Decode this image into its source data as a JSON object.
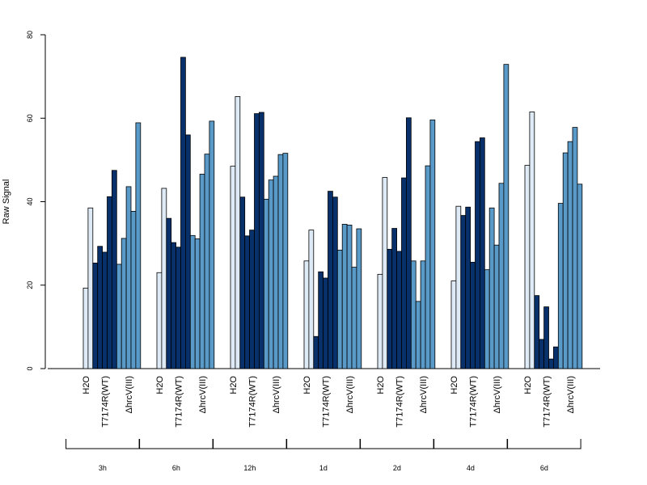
{
  "chart_data": {
    "type": "bar",
    "ylabel": "Raw Signal",
    "ylim": [
      0,
      80
    ],
    "yticks": [
      0,
      20,
      40,
      60,
      80
    ],
    "grid": false,
    "colors": {
      "H2O": "#deebf7",
      "T7174R(WT)": "#08306b",
      "ΔhrcV(III)": "#5a9ac8"
    },
    "groups": [
      {
        "time": "3h",
        "subgroups": [
          {
            "label": "H2O",
            "values": [
              0,
              19.3,
              38.5
            ]
          },
          {
            "label": "T7174R(WT)",
            "values": [
              25.3,
              29.3,
              27.9,
              41.2,
              47.5
            ]
          },
          {
            "label": "ΔhrcV(III)",
            "values": [
              25,
              31.2,
              43.6,
              37.7,
              58.9
            ]
          }
        ]
      },
      {
        "time": "6h",
        "subgroups": [
          {
            "label": "H2O",
            "values": [
              0,
              23,
              43.2
            ]
          },
          {
            "label": "T7174R(WT)",
            "values": [
              36,
              30.2,
              29.1,
              74.6,
              56
            ]
          },
          {
            "label": "ΔhrcV(III)",
            "values": [
              31.9,
              31.1,
              46.6,
              51.4,
              59.3
            ]
          }
        ]
      },
      {
        "time": "12h",
        "subgroups": [
          {
            "label": "H2O",
            "values": [
              0,
              48.5,
              65.2
            ]
          },
          {
            "label": "T7174R(WT)",
            "values": [
              41.1,
              31.8,
              33.2,
              61.1,
              61.4
            ]
          },
          {
            "label": "ΔhrcV(III)",
            "values": [
              40.6,
              45.2,
              46.1,
              51.3,
              51.6
            ]
          }
        ]
      },
      {
        "time": "1d",
        "subgroups": [
          {
            "label": "H2O",
            "values": [
              0,
              25.8,
              33.2
            ]
          },
          {
            "label": "T7174R(WT)",
            "values": [
              7.7,
              23.2,
              21.7,
              42.5,
              41.1
            ]
          },
          {
            "label": "ΔhrcV(III)",
            "values": [
              28.4,
              34.6,
              34.4,
              24.3,
              33.5
            ]
          }
        ]
      },
      {
        "time": "2d",
        "subgroups": [
          {
            "label": "H2O",
            "values": [
              0,
              22.6,
              45.8
            ]
          },
          {
            "label": "T7174R(WT)",
            "values": [
              28.6,
              33.6,
              28.1,
              45.7,
              60.1
            ]
          },
          {
            "label": "ΔhrcV(III)",
            "values": [
              25.8,
              16.1,
              25.8,
              48.6,
              59.6
            ]
          }
        ]
      },
      {
        "time": "4d",
        "subgroups": [
          {
            "label": "H2O",
            "values": [
              0,
              21,
              38.9
            ]
          },
          {
            "label": "T7174R(WT)",
            "values": [
              36.7,
              38.7,
              25.5,
              54.4,
              55.3
            ]
          },
          {
            "label": "ΔhrcV(III)",
            "values": [
              23.7,
              38.5,
              29.6,
              44.4,
              72.9
            ]
          }
        ]
      },
      {
        "time": "6d",
        "subgroups": [
          {
            "label": "H2O",
            "values": [
              0,
              48.7,
              61.5
            ]
          },
          {
            "label": "T7174R(WT)",
            "values": [
              17.5,
              7,
              14.8,
              2.3,
              5.2
            ]
          },
          {
            "label": "ΔhrcV(III)",
            "values": [
              39.6,
              51.7,
              54.4,
              57.8,
              44.2
            ]
          }
        ]
      }
    ]
  }
}
